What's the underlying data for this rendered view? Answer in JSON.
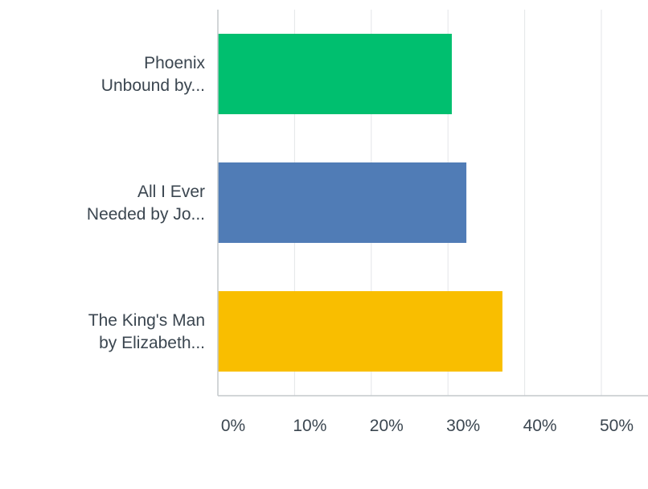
{
  "chart_data": {
    "type": "bar",
    "orientation": "horizontal",
    "categories": [
      [
        "Phoenix",
        "Unbound by..."
      ],
      [
        "All I Ever",
        "Needed by Jo..."
      ],
      [
        "The King's Man",
        "by Elizabeth..."
      ]
    ],
    "values": [
      30.5,
      32.4,
      37.1
    ],
    "colors": [
      "#00bf6f",
      "#507cb6",
      "#f9be00"
    ],
    "xlim": [
      0,
      56
    ],
    "x_ticks": [
      0,
      10,
      20,
      30,
      40,
      50
    ],
    "x_tick_labels": [
      "0%",
      "10%",
      "20%",
      "30%",
      "40%",
      "50%"
    ],
    "grid": "vertical",
    "title": "",
    "xlabel": "",
    "ylabel": ""
  }
}
